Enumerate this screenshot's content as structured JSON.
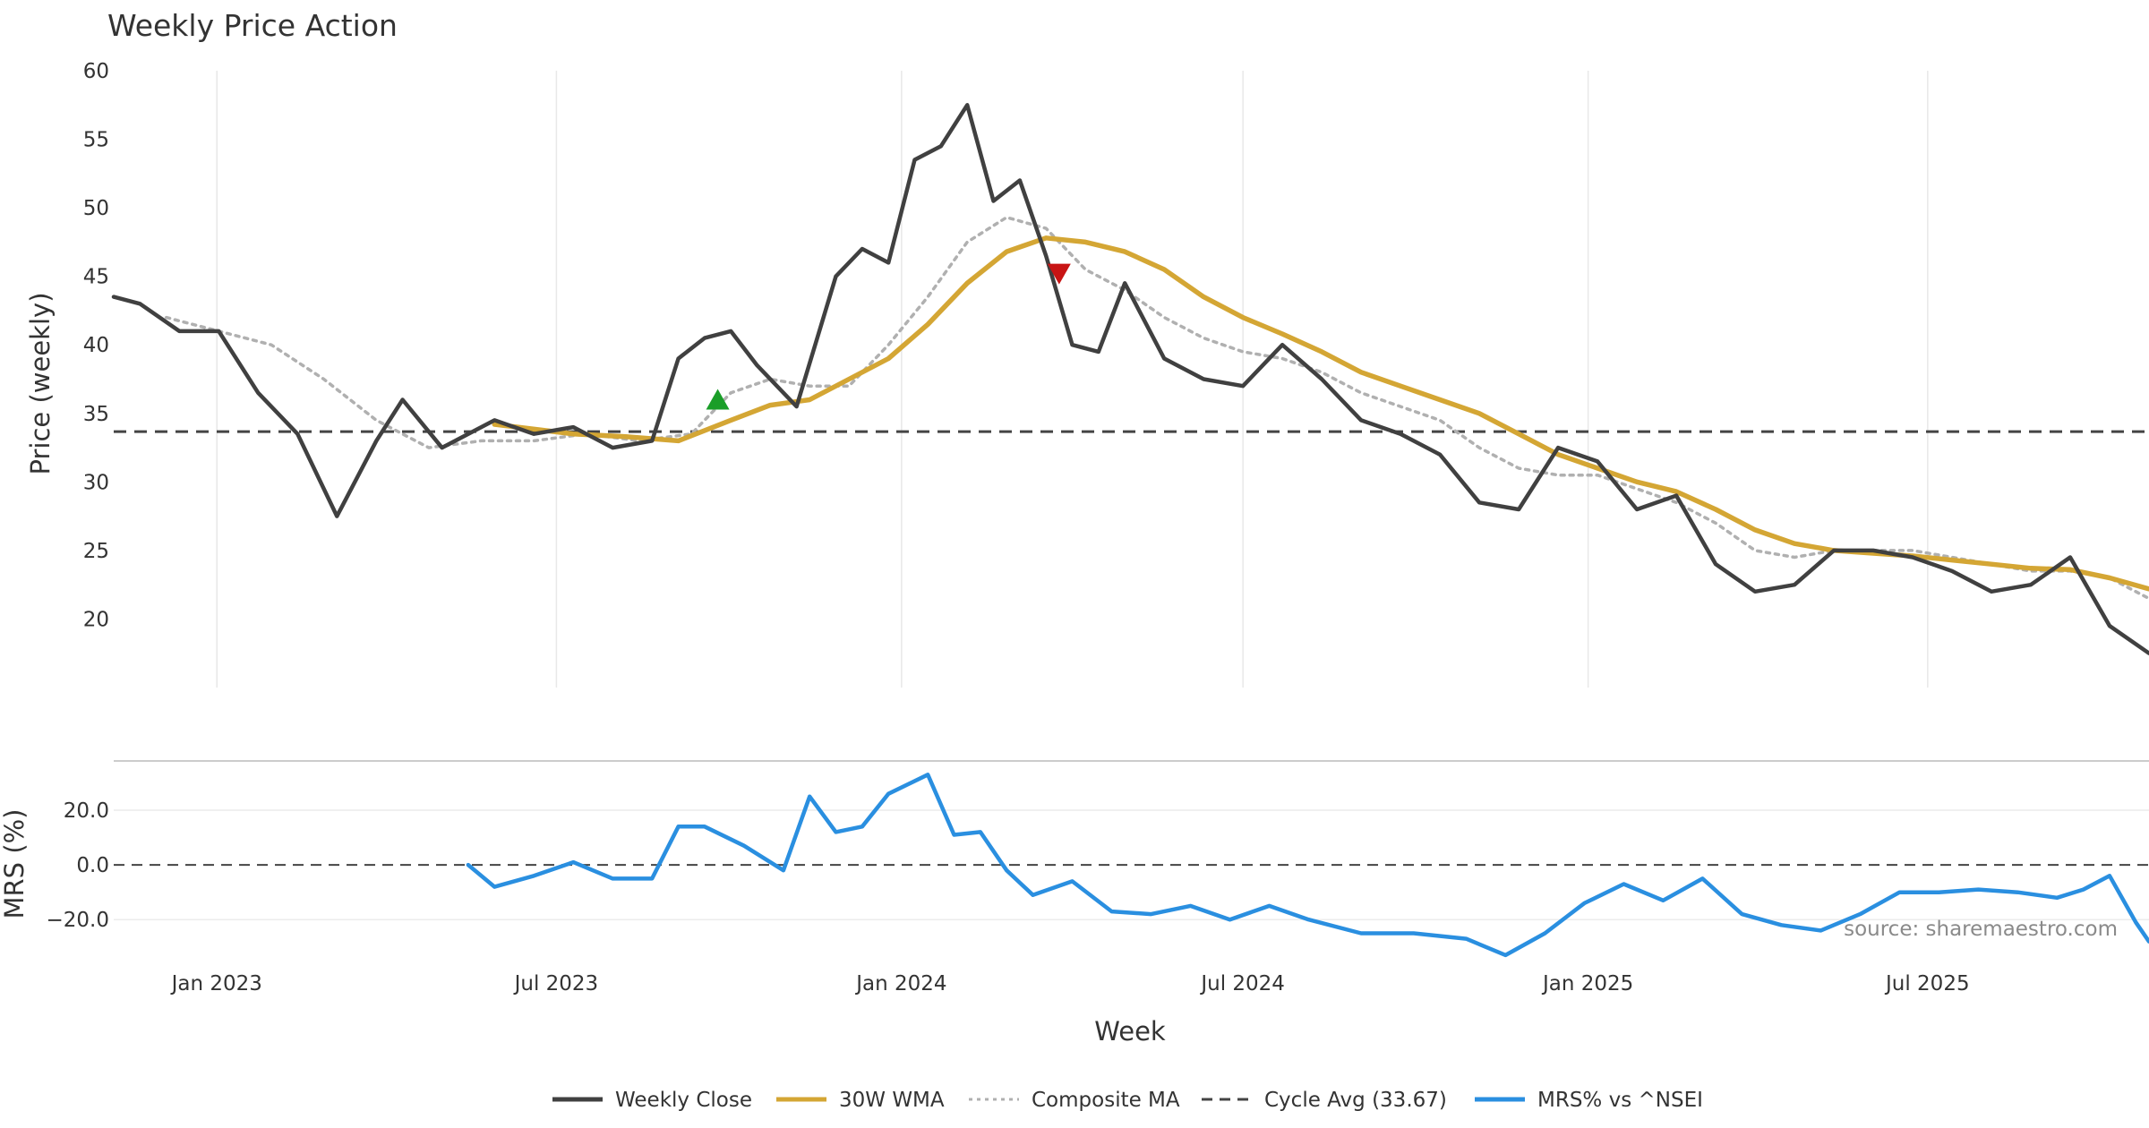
{
  "chart_data": [
    {
      "type": "line",
      "title": "Weekly Price Action",
      "xlabel": "Week",
      "ylabel": "Price (weekly)",
      "y_ticks": [
        20,
        25,
        30,
        35,
        40,
        45,
        50,
        55,
        60
      ],
      "x_ticks": [
        "Jan 2023",
        "Jul 2023",
        "Jan 2024",
        "Jul 2024",
        "Jan 2025",
        "Jul 2025"
      ],
      "x_tick_dates": [
        "2023-01-01",
        "2023-07-01",
        "2024-01-01",
        "2024-07-01",
        "2025-01-01",
        "2025-07-01"
      ],
      "x_range": [
        "2022-11-07",
        "2025-10-27"
      ],
      "ylim": [
        15,
        60
      ],
      "grid": "vertical",
      "cycle_avg": 33.67,
      "series": [
        {
          "name": "Weekly Close",
          "color": "#404040",
          "style": "solid",
          "x": [
            "2022-11-07",
            "2022-11-21",
            "2022-12-12",
            "2023-01-02",
            "2023-01-23",
            "2023-02-13",
            "2023-03-06",
            "2023-03-27",
            "2023-04-10",
            "2023-05-01",
            "2023-05-29",
            "2023-06-19",
            "2023-07-10",
            "2023-07-31",
            "2023-08-21",
            "2023-09-04",
            "2023-09-18",
            "2023-10-02",
            "2023-10-16",
            "2023-11-06",
            "2023-11-27",
            "2023-12-11",
            "2023-12-25",
            "2024-01-08",
            "2024-01-22",
            "2024-02-05",
            "2024-02-19",
            "2024-03-04",
            "2024-03-18",
            "2024-04-01",
            "2024-04-15",
            "2024-04-29",
            "2024-05-20",
            "2024-06-10",
            "2024-07-01",
            "2024-07-22",
            "2024-08-12",
            "2024-09-02",
            "2024-09-23",
            "2024-10-14",
            "2024-11-04",
            "2024-11-25",
            "2024-12-16",
            "2025-01-06",
            "2025-01-27",
            "2025-02-17",
            "2025-03-10",
            "2025-03-31",
            "2025-04-21",
            "2025-05-12",
            "2025-06-02",
            "2025-06-23",
            "2025-07-14",
            "2025-08-04",
            "2025-08-25",
            "2025-09-15",
            "2025-10-06",
            "2025-10-27"
          ],
          "values": [
            43.5,
            43.0,
            41.0,
            41.0,
            36.5,
            33.5,
            27.5,
            33.0,
            36.0,
            32.5,
            34.5,
            33.5,
            34.0,
            32.5,
            33.0,
            39.0,
            40.5,
            41.0,
            38.5,
            35.5,
            45.0,
            47.0,
            46.0,
            53.5,
            54.5,
            57.5,
            50.5,
            52.0,
            46.5,
            40.0,
            39.5,
            44.5,
            39.0,
            37.5,
            37.0,
            40.0,
            37.5,
            34.5,
            33.5,
            32.0,
            28.5,
            28.0,
            32.5,
            31.5,
            28.0,
            29.0,
            24.0,
            22.0,
            22.5,
            25.0,
            25.0,
            24.5,
            23.5,
            22.0,
            22.5,
            24.5,
            19.5,
            17.5
          ]
        },
        {
          "name": "30W WMA",
          "color": "#d4a634",
          "style": "solid",
          "x": [
            "2023-05-29",
            "2023-07-10",
            "2023-08-07",
            "2023-09-04",
            "2023-10-02",
            "2023-10-23",
            "2023-11-13",
            "2023-12-04",
            "2023-12-25",
            "2024-01-15",
            "2024-02-05",
            "2024-02-26",
            "2024-03-18",
            "2024-04-08",
            "2024-04-29",
            "2024-05-20",
            "2024-06-10",
            "2024-07-01",
            "2024-07-22",
            "2024-08-12",
            "2024-09-02",
            "2024-09-23",
            "2024-10-14",
            "2024-11-04",
            "2024-11-25",
            "2024-12-16",
            "2025-01-06",
            "2025-01-27",
            "2025-02-17",
            "2025-03-10",
            "2025-03-31",
            "2025-04-21",
            "2025-05-12",
            "2025-06-02",
            "2025-06-23",
            "2025-07-14",
            "2025-08-04",
            "2025-08-25",
            "2025-09-15",
            "2025-10-06",
            "2025-10-27"
          ],
          "values": [
            34.2,
            33.5,
            33.3,
            33.0,
            34.5,
            35.6,
            36.0,
            37.5,
            39.0,
            41.5,
            44.5,
            46.8,
            47.8,
            47.5,
            46.8,
            45.5,
            43.5,
            42.0,
            40.8,
            39.5,
            38.0,
            37.0,
            36.0,
            35.0,
            33.5,
            32.0,
            31.0,
            30.0,
            29.3,
            28.0,
            26.5,
            25.5,
            25.0,
            24.8,
            24.6,
            24.3,
            24.0,
            23.7,
            23.6,
            23.0,
            22.2
          ]
        },
        {
          "name": "Composite MA",
          "color": "#b0b0b0",
          "style": "dotted",
          "x": [
            "2022-12-05",
            "2023-01-02",
            "2023-01-30",
            "2023-02-27",
            "2023-03-27",
            "2023-04-24",
            "2023-05-22",
            "2023-06-19",
            "2023-07-17",
            "2023-08-14",
            "2023-09-11",
            "2023-10-02",
            "2023-10-23",
            "2023-11-13",
            "2023-12-04",
            "2023-12-25",
            "2024-01-15",
            "2024-02-05",
            "2024-02-26",
            "2024-03-18",
            "2024-04-08",
            "2024-04-29",
            "2024-05-20",
            "2024-06-10",
            "2024-07-01",
            "2024-07-22",
            "2024-08-12",
            "2024-09-02",
            "2024-09-23",
            "2024-10-14",
            "2024-11-04",
            "2024-11-25",
            "2024-12-16",
            "2025-01-06",
            "2025-01-27",
            "2025-02-17",
            "2025-03-10",
            "2025-03-31",
            "2025-04-21",
            "2025-05-12",
            "2025-06-02",
            "2025-06-23",
            "2025-07-14",
            "2025-08-04",
            "2025-08-25",
            "2025-09-15",
            "2025-10-06",
            "2025-10-27"
          ],
          "values": [
            42.0,
            41.0,
            40.0,
            37.5,
            34.5,
            32.5,
            33.0,
            33.0,
            33.5,
            33.0,
            33.5,
            36.5,
            37.5,
            37.0,
            37.0,
            40.0,
            43.5,
            47.5,
            49.3,
            48.5,
            45.5,
            44.0,
            42.0,
            40.5,
            39.5,
            39.0,
            38.0,
            36.5,
            35.5,
            34.5,
            32.5,
            31.0,
            30.5,
            30.5,
            29.5,
            28.5,
            27.0,
            25.0,
            24.5,
            25.0,
            25.0,
            25.0,
            24.5,
            24.0,
            23.5,
            23.5,
            23.0,
            21.5
          ]
        }
      ],
      "markers": [
        {
          "type": "buy",
          "x": "2023-09-25",
          "y": 36.0,
          "color": "#1a9e28"
        },
        {
          "type": "sell",
          "x": "2024-03-25",
          "y": 45.2,
          "color": "#c81414"
        }
      ]
    },
    {
      "type": "line",
      "ylabel": "MRS (%)",
      "y_ticks": [
        -20,
        0,
        20
      ],
      "y_tick_labels": [
        "−20.0",
        "0.0",
        "20.0"
      ],
      "ylim": [
        -34,
        38
      ],
      "zero_line": 0,
      "series": [
        {
          "name": "MRS% vs ^NSEI",
          "color": "#2a8fe0",
          "style": "solid",
          "x": [
            "2023-05-15",
            "2023-05-29",
            "2023-06-19",
            "2023-07-10",
            "2023-07-31",
            "2023-08-21",
            "2023-09-04",
            "2023-09-18",
            "2023-10-09",
            "2023-10-30",
            "2023-11-13",
            "2023-11-27",
            "2023-12-11",
            "2023-12-25",
            "2024-01-15",
            "2024-01-29",
            "2024-02-12",
            "2024-02-26",
            "2024-03-11",
            "2024-04-01",
            "2024-04-22",
            "2024-05-13",
            "2024-06-03",
            "2024-06-24",
            "2024-07-15",
            "2024-08-05",
            "2024-09-02",
            "2024-09-30",
            "2024-10-28",
            "2024-11-18",
            "2024-12-09",
            "2024-12-30",
            "2025-01-20",
            "2025-02-10",
            "2025-03-03",
            "2025-03-24",
            "2025-04-14",
            "2025-05-05",
            "2025-05-26",
            "2025-06-16",
            "2025-07-07",
            "2025-07-28",
            "2025-08-18",
            "2025-09-08",
            "2025-09-22",
            "2025-10-06",
            "2025-10-20",
            "2025-10-27"
          ],
          "values": [
            0.0,
            -8.0,
            -4.0,
            1.0,
            -5.0,
            -5.0,
            14.0,
            14.0,
            7.0,
            -2.0,
            25.0,
            12.0,
            14.0,
            26.0,
            33.0,
            11.0,
            12.0,
            -2.0,
            -11.0,
            -6.0,
            -17.0,
            -18.0,
            -15.0,
            -20.0,
            -15.0,
            -20.0,
            -25.0,
            -25.0,
            -27.0,
            -33.0,
            -25.0,
            -14.0,
            -7.0,
            -13.0,
            -5.0,
            -18.0,
            -22.0,
            -24.0,
            -18.0,
            -10.0,
            -10.0,
            -9.0,
            -10.0,
            -12.0,
            -9.0,
            -4.0,
            -21.0,
            -28.0
          ]
        }
      ]
    }
  ],
  "legend": [
    {
      "label": "Weekly Close",
      "color": "#404040",
      "style": "solid"
    },
    {
      "label": "30W WMA",
      "color": "#d4a634",
      "style": "solid"
    },
    {
      "label": "Composite MA",
      "color": "#b0b0b0",
      "style": "dotted"
    },
    {
      "label": "Cycle Avg (33.67)",
      "color": "#444444",
      "style": "dashed"
    },
    {
      "label": "MRS% vs ^NSEI",
      "color": "#2a8fe0",
      "style": "solid"
    }
  ],
  "source_text": "source: sharemaestro.com"
}
